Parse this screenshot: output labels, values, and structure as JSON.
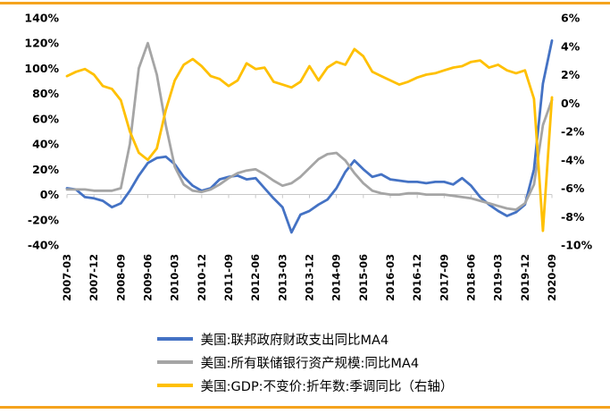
{
  "page": {
    "background": "#ffffff",
    "accent_color": "#F5A31E"
  },
  "chart_data": {
    "type": "line",
    "title": "",
    "grid": "zero-line-only",
    "legend_position": "bottom",
    "x": [
      "2007-03",
      "2007-06",
      "2007-09",
      "2007-12",
      "2008-03",
      "2008-06",
      "2008-09",
      "2008-12",
      "2009-03",
      "2009-06",
      "2009-09",
      "2009-12",
      "2010-03",
      "2010-06",
      "2010-09",
      "2010-12",
      "2011-03",
      "2011-06",
      "2011-09",
      "2011-12",
      "2012-03",
      "2012-06",
      "2012-09",
      "2012-12",
      "2013-03",
      "2013-06",
      "2013-09",
      "2013-12",
      "2014-03",
      "2014-06",
      "2014-09",
      "2014-12",
      "2015-03",
      "2015-06",
      "2015-09",
      "2015-12",
      "2016-03",
      "2016-06",
      "2016-09",
      "2016-12",
      "2017-03",
      "2017-06",
      "2017-09",
      "2017-12",
      "2018-03",
      "2018-06",
      "2018-09",
      "2018-12",
      "2019-03",
      "2019-06",
      "2019-09",
      "2019-12",
      "2020-03",
      "2020-06",
      "2020-09"
    ],
    "x_tick_labels": [
      "2007-03",
      "2007-12",
      "2008-09",
      "2009-06",
      "2010-03",
      "2010-12",
      "2011-09",
      "2012-06",
      "2013-03",
      "2013-12",
      "2014-09",
      "2015-06",
      "2016-03",
      "2016-12",
      "2017-09",
      "2018-06",
      "2019-03",
      "2019-12",
      "2020-09"
    ],
    "left_axis": {
      "min": -40,
      "max": 140,
      "step": 20,
      "tick_labels": [
        "140%",
        "120%",
        "100%",
        "80%",
        "60%",
        "40%",
        "20%",
        "0%",
        "-20%",
        "-40%"
      ]
    },
    "right_axis": {
      "min": -10,
      "max": 6,
      "step": 2,
      "tick_labels": [
        "6%",
        "4%",
        "2%",
        "0%",
        "-2%",
        "-4%",
        "-6%",
        "-8%",
        "-10%"
      ]
    },
    "series": [
      {
        "name": "美国:联邦政府财政支出同比MA4",
        "axis": "left",
        "color": "#4472C4",
        "values": [
          5,
          4,
          -2,
          -3,
          -5,
          -10,
          -7,
          3,
          15,
          25,
          29,
          30,
          24,
          14,
          7,
          3,
          5,
          12,
          14,
          15,
          12,
          13,
          5,
          -3,
          -10,
          -30,
          -16,
          -13,
          -8,
          -4,
          5,
          18,
          27,
          20,
          14,
          16,
          12,
          11,
          10,
          10,
          9,
          10,
          10,
          8,
          13,
          7,
          -2,
          -8,
          -13,
          -17,
          -14,
          -8,
          20,
          88,
          122
        ]
      },
      {
        "name": "美国:所有联储银行资产规模:同比MA4",
        "axis": "left",
        "color": "#A5A5A5",
        "values": [
          4,
          4,
          4,
          3,
          3,
          3,
          5,
          40,
          100,
          120,
          95,
          55,
          22,
          8,
          3,
          2,
          4,
          8,
          13,
          17,
          19,
          20,
          16,
          11,
          7,
          9,
          14,
          21,
          28,
          32,
          33,
          27,
          17,
          9,
          3,
          1,
          0,
          0,
          1,
          1,
          0,
          0,
          0,
          -1,
          -2,
          -3,
          -5,
          -7,
          -9,
          -11,
          -12,
          -7,
          8,
          55,
          75
        ]
      },
      {
        "name": "美国:GDP:不变价:折年数:季调同比（右轴）",
        "axis": "right",
        "color": "#FFC000",
        "values": [
          1.9,
          2.2,
          2.4,
          2.0,
          1.2,
          1.0,
          0.2,
          -2.0,
          -3.5,
          -4.0,
          -3.2,
          -0.5,
          1.6,
          2.7,
          3.1,
          2.6,
          1.9,
          1.7,
          1.2,
          1.6,
          2.8,
          2.4,
          2.5,
          1.5,
          1.3,
          1.1,
          1.5,
          2.6,
          1.6,
          2.5,
          2.9,
          2.7,
          3.8,
          3.3,
          2.2,
          1.9,
          1.6,
          1.3,
          1.5,
          1.8,
          2.0,
          2.1,
          2.3,
          2.5,
          2.6,
          2.9,
          3.0,
          2.5,
          2.7,
          2.3,
          2.1,
          2.3,
          0.3,
          -9,
          0.4
        ]
      }
    ]
  }
}
